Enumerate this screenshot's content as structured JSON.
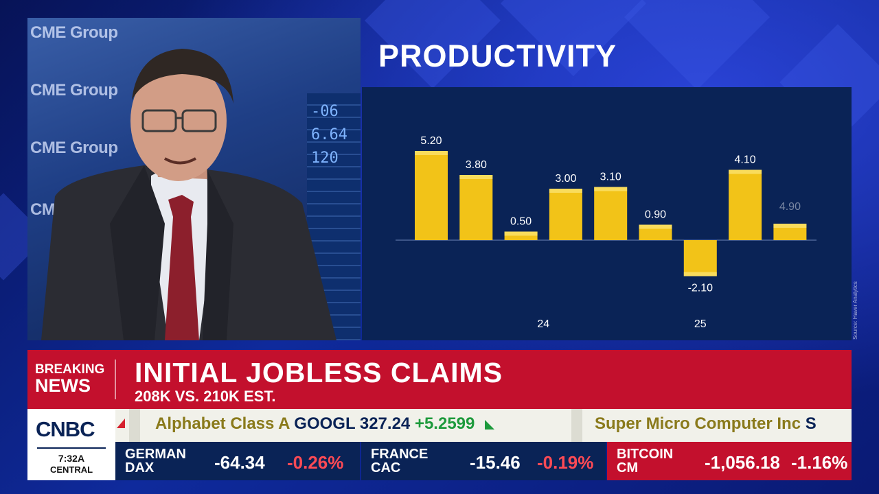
{
  "background_texts": {
    "wall_1": "CME Group",
    "wall_2": "CME Group",
    "wall_3": "CME Group",
    "wall_4": "CME",
    "ticker_wall": [
      "-06",
      "6.64",
      "120"
    ]
  },
  "chart_data": {
    "type": "bar",
    "title": "PRODUCTIVITY",
    "values": [
      5.2,
      3.8,
      0.5,
      3.0,
      3.1,
      0.9,
      -2.1,
      4.1,
      4.9
    ],
    "value_labels": [
      "5.20",
      "3.80",
      "0.50",
      "3.00",
      "3.10",
      "0.90",
      "-2.10",
      "4.10",
      "4.90"
    ],
    "group_labels": [
      {
        "label": "24",
        "from_index": 2,
        "to_index": 3
      },
      {
        "label": "25",
        "from_index": 6,
        "to_index": 6
      }
    ],
    "source": "Source: Haver Analytics",
    "bar_color": "#f2c318",
    "partial_bar_indices": [
      8
    ]
  },
  "lower_third": {
    "breaking_label_1": "BREAKING",
    "breaking_label_2": "NEWS",
    "headline": "INITIAL JOBLESS CLAIMS",
    "subheadline": "208K VS. 210K EST."
  },
  "network": {
    "logo": "CNBC",
    "time": "7:32A",
    "zone": "CENTRAL"
  },
  "crawl": {
    "item1_name": "Alphabet Class A",
    "item1_symbol": "GOOGL",
    "item1_price": "327.24",
    "item1_change": "+5.2599",
    "item2_name": "Super Micro Computer Inc",
    "item2_tail": "S"
  },
  "markets": [
    {
      "name": "GERMAN DAX",
      "value": "-64.34",
      "pct": "-0.26%",
      "bg": "#0a2356",
      "pct_color": "#ff4a55"
    },
    {
      "name": "FRANCE CAC",
      "value": "-15.46",
      "pct": "-0.19%",
      "bg": "#0a2356",
      "pct_color": "#ff4a55"
    },
    {
      "name": "BITCOIN CM",
      "value": "-1,056.18",
      "pct": "-1.16%",
      "bg": "#c3102d",
      "pct_color": "#ffffff"
    }
  ],
  "colors": {
    "breaking_red": "#c3102d",
    "navy": "#0a2356"
  }
}
